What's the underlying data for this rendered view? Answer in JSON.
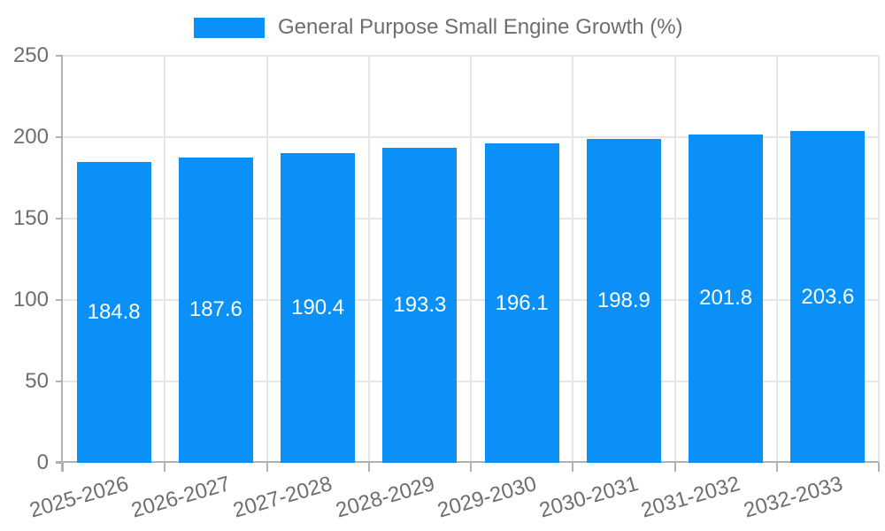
{
  "colors": {
    "bar": "#0a90f6",
    "text": "#6e6e6e",
    "axis": "#b0b0b0",
    "grid": "#e6e6e6",
    "value_label": "#ffffff",
    "background": "#ffffff"
  },
  "legend": {
    "label": "General Purpose Small Engine Growth (%)",
    "position": "top"
  },
  "chart_data": {
    "type": "bar",
    "title": "General Purpose Small Engine Growth (%)",
    "categories": [
      "2025-2026",
      "2026-2027",
      "2027-2028",
      "2028-2029",
      "2029-2030",
      "2030-2031",
      "2031-2032",
      "2032-2033"
    ],
    "values": [
      184.8,
      187.6,
      190.4,
      193.3,
      196.1,
      198.9,
      201.8,
      203.6
    ],
    "value_labels": [
      "184.8",
      "187.6",
      "190.4",
      "193.3",
      "196.1",
      "198.9",
      "201.8",
      "203.6"
    ],
    "xlabel": "",
    "ylabel": "",
    "ylim": [
      0,
      250
    ],
    "yticks": [
      0,
      50,
      100,
      150,
      200,
      250
    ],
    "grid": true,
    "legend_position": "top",
    "value_label_position": "inside-center",
    "x_tick_rotation_deg": -16,
    "color": "#0a90f6"
  }
}
